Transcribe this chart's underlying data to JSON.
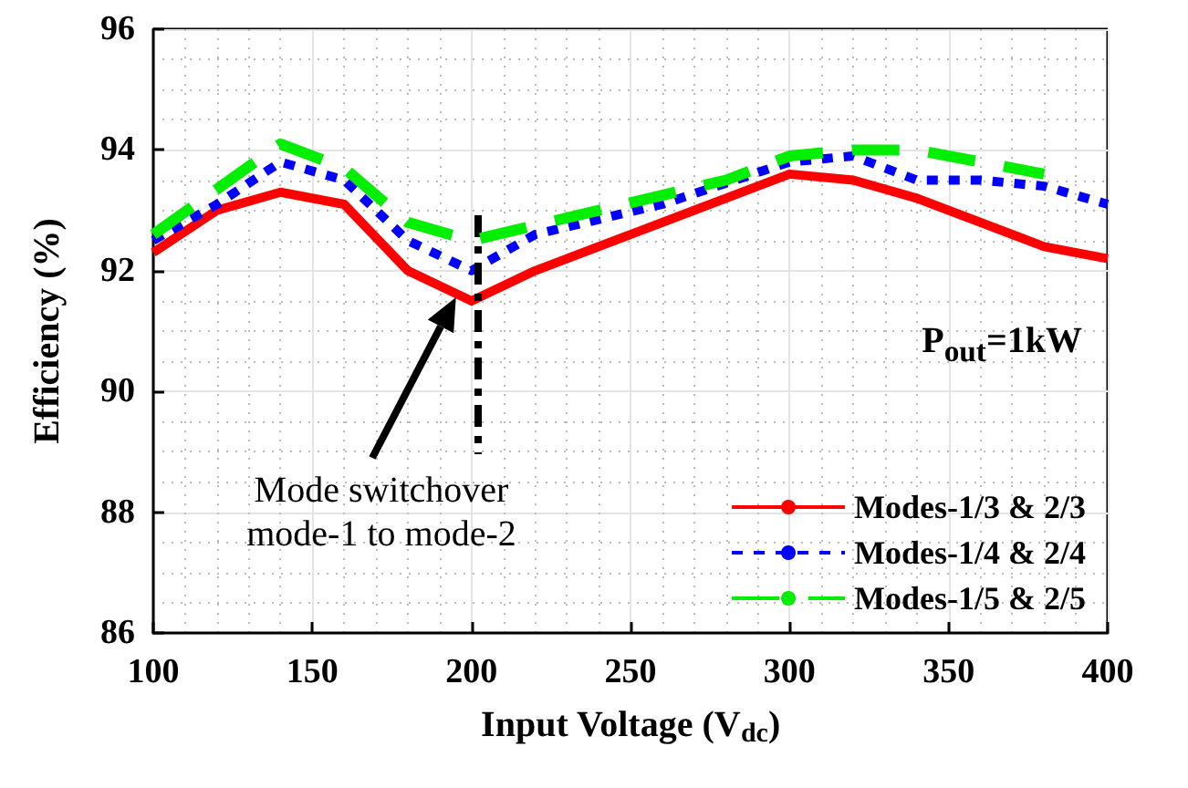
{
  "chart_data": {
    "type": "line",
    "xlabel": "Input Voltage (V$_{dc}$)",
    "ylabel": "Efficiency (%)",
    "xlim": [
      100,
      400
    ],
    "xticks": [
      100,
      150,
      200,
      250,
      300,
      350,
      400
    ],
    "ylim": [
      86,
      96
    ],
    "yticks": [
      86,
      88,
      90,
      92,
      94,
      96
    ],
    "grid": true,
    "legend": "bottom right",
    "marker": "none",
    "series": [
      {
        "name": "Modes-1/3 & 2/3",
        "color": "#ff0000",
        "line_style": "solid",
        "x": [
          100,
          120,
          140,
          160,
          180,
          200,
          220,
          250,
          280,
          300,
          320,
          340,
          380,
          400
        ],
        "values": [
          92.3,
          93.0,
          93.3,
          93.1,
          92.0,
          91.5,
          92.0,
          92.6,
          93.2,
          93.6,
          93.5,
          93.2,
          92.4,
          92.2
        ]
      },
      {
        "name": "Modes-1/4 & 2/4",
        "color": "#0000ff",
        "line_style": "dotted",
        "x": [
          100,
          120,
          140,
          160,
          180,
          200,
          220,
          260,
          300,
          320,
          340,
          360,
          380,
          400
        ],
        "values": [
          92.5,
          93.1,
          93.8,
          93.5,
          92.5,
          92.0,
          92.6,
          93.1,
          93.8,
          93.9,
          93.5,
          93.5,
          93.4,
          93.1
        ]
      },
      {
        "name": "Modes-1/5 & 2/5",
        "color": "#00ee00",
        "line_style": "dashed",
        "x": [
          100,
          140,
          160,
          180,
          200,
          240,
          280,
          300,
          320,
          340,
          380
        ],
        "values": [
          92.6,
          94.1,
          93.7,
          92.8,
          92.5,
          93.0,
          93.5,
          93.9,
          94.0,
          94.0,
          93.6
        ]
      }
    ],
    "ref_lines": [
      {
        "axis": "x",
        "value": 202,
        "color": "#000000",
        "line_style": "dashdot"
      }
    ],
    "annotations": [
      "Mode switchover\nmode-1 to mode-2",
      "P$_{out}$=1kW"
    ]
  }
}
